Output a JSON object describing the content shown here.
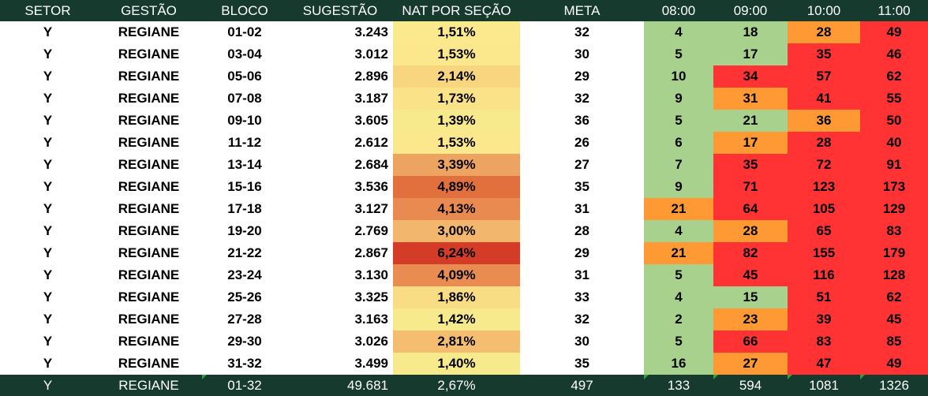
{
  "headers": [
    "SETOR",
    "GESTÃO",
    "BLOCO",
    "SUGESTÃO",
    "NAT POR SEÇÃO",
    "META",
    "08:00",
    "09:00",
    "10:00",
    "11:00"
  ],
  "colors": {
    "header_bg": "#173a2e",
    "green": "#a9d18e",
    "orange": "#ff9933",
    "red": "#ff3333"
  },
  "rows": [
    {
      "setor": "Y",
      "gestao": "REGIANE",
      "bloco": "01-02",
      "sugestao": "3.243",
      "nat": "1,51%",
      "nat_color": "#fbe98d",
      "meta": "32",
      "h08": "4",
      "h09": "18",
      "h10": "28",
      "h11": "49"
    },
    {
      "setor": "Y",
      "gestao": "REGIANE",
      "bloco": "03-04",
      "sugestao": "3.012",
      "nat": "1,53%",
      "nat_color": "#fbe88c",
      "meta": "30",
      "h08": "5",
      "h09": "17",
      "h10": "35",
      "h11": "46"
    },
    {
      "setor": "Y",
      "gestao": "REGIANE",
      "bloco": "05-06",
      "sugestao": "2.896",
      "nat": "2,14%",
      "nat_color": "#f8d57f",
      "meta": "29",
      "h08": "10",
      "h09": "34",
      "h10": "57",
      "h11": "62"
    },
    {
      "setor": "Y",
      "gestao": "REGIANE",
      "bloco": "07-08",
      "sugestao": "3.187",
      "nat": "1,73%",
      "nat_color": "#fae288",
      "meta": "32",
      "h08": "9",
      "h09": "31",
      "h10": "41",
      "h11": "55"
    },
    {
      "setor": "Y",
      "gestao": "REGIANE",
      "bloco": "09-10",
      "sugestao": "3.605",
      "nat": "1,39%",
      "nat_color": "#f6ea8c",
      "meta": "36",
      "h08": "5",
      "h09": "21",
      "h10": "36",
      "h11": "50"
    },
    {
      "setor": "Y",
      "gestao": "REGIANE",
      "bloco": "11-12",
      "sugestao": "2.612",
      "nat": "1,53%",
      "nat_color": "#fbe88c",
      "meta": "26",
      "h08": "6",
      "h09": "17",
      "h10": "28",
      "h11": "40"
    },
    {
      "setor": "Y",
      "gestao": "REGIANE",
      "bloco": "13-14",
      "sugestao": "2.684",
      "nat": "3,39%",
      "nat_color": "#eea461",
      "meta": "27",
      "h08": "7",
      "h09": "35",
      "h10": "72",
      "h11": "91"
    },
    {
      "setor": "Y",
      "gestao": "REGIANE",
      "bloco": "15-16",
      "sugestao": "3.536",
      "nat": "4,89%",
      "nat_color": "#e2703e",
      "meta": "35",
      "h08": "9",
      "h09": "71",
      "h10": "123",
      "h11": "173"
    },
    {
      "setor": "Y",
      "gestao": "REGIANE",
      "bloco": "17-18",
      "sugestao": "3.127",
      "nat": "4,13%",
      "nat_color": "#e98a50",
      "meta": "31",
      "h08": "21",
      "h09": "64",
      "h10": "105",
      "h11": "129"
    },
    {
      "setor": "Y",
      "gestao": "REGIANE",
      "bloco": "19-20",
      "sugestao": "2.769",
      "nat": "3,00%",
      "nat_color": "#f2b76c",
      "meta": "28",
      "h08": "4",
      "h09": "28",
      "h10": "65",
      "h11": "83"
    },
    {
      "setor": "Y",
      "gestao": "REGIANE",
      "bloco": "21-22",
      "sugestao": "2.867",
      "nat": "6,24%",
      "nat_color": "#d43c27",
      "meta": "29",
      "h08": "21",
      "h09": "82",
      "h10": "155",
      "h11": "179"
    },
    {
      "setor": "Y",
      "gestao": "REGIANE",
      "bloco": "23-24",
      "sugestao": "3.130",
      "nat": "4,09%",
      "nat_color": "#e98c51",
      "meta": "31",
      "h08": "5",
      "h09": "45",
      "h10": "116",
      "h11": "128"
    },
    {
      "setor": "Y",
      "gestao": "REGIANE",
      "bloco": "25-26",
      "sugestao": "3.325",
      "nat": "1,86%",
      "nat_color": "#f9dd85",
      "meta": "33",
      "h08": "4",
      "h09": "15",
      "h10": "51",
      "h11": "62"
    },
    {
      "setor": "Y",
      "gestao": "REGIANE",
      "bloco": "27-28",
      "sugestao": "3.163",
      "nat": "1,42%",
      "nat_color": "#f7ea8c",
      "meta": "32",
      "h08": "2",
      "h09": "23",
      "h10": "39",
      "h11": "45"
    },
    {
      "setor": "Y",
      "gestao": "REGIANE",
      "bloco": "29-30",
      "sugestao": "3.026",
      "nat": "2,81%",
      "nat_color": "#f4bd70",
      "meta": "30",
      "h08": "5",
      "h09": "66",
      "h10": "83",
      "h11": "85"
    },
    {
      "setor": "Y",
      "gestao": "REGIANE",
      "bloco": "31-32",
      "sugestao": "3.499",
      "nat": "1,40%",
      "nat_color": "#f7ea8c",
      "meta": "35",
      "h08": "16",
      "h09": "27",
      "h10": "47",
      "h11": "49"
    }
  ],
  "total": {
    "setor": "Y",
    "gestao": "REGIANE",
    "bloco": "01-32",
    "sugestao": "49.681",
    "nat": "2,67%",
    "meta": "497",
    "h08": "133",
    "h09": "594",
    "h10": "1081",
    "h11": "1326"
  }
}
